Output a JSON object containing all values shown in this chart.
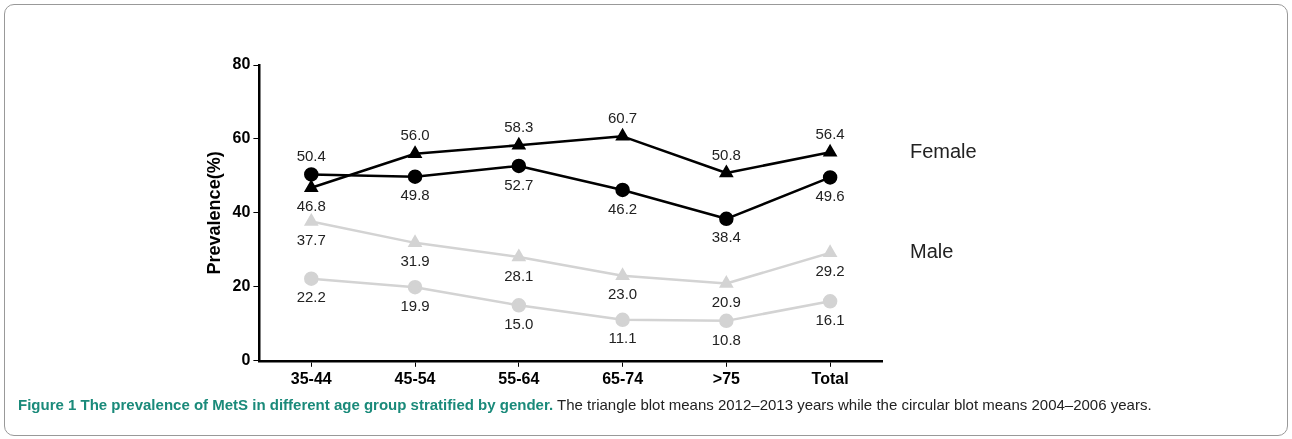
{
  "chart_data": {
    "type": "line",
    "title": "Figure 1 The prevalence of MetS in different age group stratified by gender.",
    "subtitle": "The triangle blot means 2012–2013 years while the circular blot means 2004–2006 years.",
    "ylabel": "Prevalence(%)",
    "categories": [
      "35-44",
      "45-54",
      "55-64",
      "65-74",
      ">75",
      "Total"
    ],
    "series": [
      {
        "name": "Female",
        "color": "#000000",
        "marker": "triangle",
        "values": [
          46.8,
          56.0,
          58.3,
          60.7,
          50.8,
          56.4
        ],
        "value_labels": [
          "46.8",
          "56.0",
          "58.3",
          "60.7",
          "50.8",
          "56.4"
        ]
      },
      {
        "color": "#000000",
        "marker": "circle",
        "values": [
          50.4,
          49.8,
          52.7,
          46.2,
          38.4,
          49.6
        ],
        "value_labels": [
          "50.4",
          "49.8",
          "52.7",
          "46.2",
          "38.4",
          "49.6"
        ]
      },
      {
        "name": "Male",
        "color": "#d3d3d3",
        "marker": "triangle",
        "values": [
          37.7,
          31.9,
          28.1,
          23.0,
          20.9,
          29.2
        ],
        "value_labels": [
          "37.7",
          "31.9",
          "28.1",
          "23.0",
          "20.9",
          "29.2"
        ]
      },
      {
        "color": "#d3d3d3",
        "marker": "circle",
        "values": [
          22.2,
          19.9,
          15.0,
          11.1,
          10.8,
          16.1
        ],
        "value_labels": [
          "22.2",
          "19.9",
          "15.0",
          "11.1",
          "10.8",
          "16.1"
        ]
      }
    ],
    "ylim": [
      0,
      80
    ],
    "yticks": [
      0,
      20,
      40,
      60,
      80
    ],
    "grid": false,
    "legend": false,
    "line_style": "solid"
  }
}
